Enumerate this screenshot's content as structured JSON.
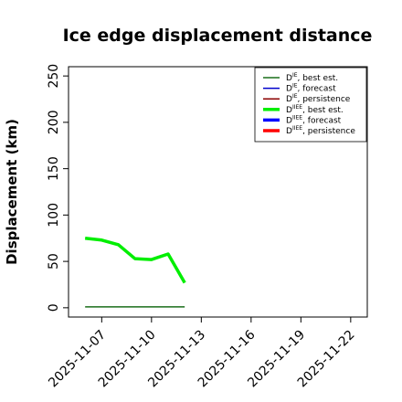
{
  "chart_data": {
    "type": "line",
    "title": "Ice edge displacement distance",
    "ylabel": "Displacement (km)",
    "xlabel": "",
    "ylim": [
      -10,
      260
    ],
    "xlim": [
      "2025-11-05",
      "2025-11-23"
    ],
    "y_ticks": [
      0,
      50,
      100,
      150,
      200,
      250
    ],
    "x_ticks": [
      {
        "label": "2025-11-07",
        "date": "2025-11-07",
        "color": "#000000"
      },
      {
        "label": "2025-11-10",
        "date": "2025-11-10",
        "color": "#000000"
      },
      {
        "label": "2025-11-13",
        "date": "2025-11-13",
        "color": "#2e7d2e"
      },
      {
        "label": "2025-11-16",
        "date": "2025-11-16",
        "color": "#000000"
      },
      {
        "label": "2025-11-19",
        "date": "2025-11-19",
        "color": "#000000"
      },
      {
        "label": "2025-11-22",
        "date": "2025-11-22",
        "color": "#000000"
      }
    ],
    "grid": false,
    "legend_position": "top-right",
    "x_dates": [
      "2025-11-06",
      "2025-11-07",
      "2025-11-08",
      "2025-11-09",
      "2025-11-10",
      "2025-11-11",
      "2025-11-12"
    ],
    "series": [
      {
        "name": "D^IE, best est.",
        "color": "#1a6e1a",
        "width": 1.5,
        "values": [
          1,
          1,
          1,
          1,
          1,
          1,
          1
        ]
      },
      {
        "name": "D^IE, forecast",
        "color": "#0000cc",
        "width": 1.5,
        "values": []
      },
      {
        "name": "D^IE, persistence",
        "color": "#8b0000",
        "width": 1.5,
        "values": []
      },
      {
        "name": "D^IIEE, best est.",
        "color": "#00ee00",
        "width": 3.5,
        "values": [
          75,
          73,
          68,
          53,
          52,
          58,
          27
        ]
      },
      {
        "name": "D^IIEE, forecast",
        "color": "#0000ff",
        "width": 3.5,
        "values": []
      },
      {
        "name": "D^IIEE, persistence",
        "color": "#ff0000",
        "width": 3.5,
        "values": []
      }
    ],
    "legend": [
      {
        "base": "D",
        "sup": "IE",
        "rest": ", best est.",
        "color": "#1a6e1a",
        "width": 1.5
      },
      {
        "base": "D",
        "sup": "IE",
        "rest": ", forecast",
        "color": "#0000cc",
        "width": 1.5
      },
      {
        "base": "D",
        "sup": "IE",
        "rest": ", persistence",
        "color": "#8b0000",
        "width": 1.5
      },
      {
        "base": "D",
        "sup": "IIEE",
        "rest": ", best est.",
        "color": "#00ee00",
        "width": 3.5
      },
      {
        "base": "D",
        "sup": "IIEE",
        "rest": ", forecast",
        "color": "#0000ff",
        "width": 3.5
      },
      {
        "base": "D",
        "sup": "IIEE",
        "rest": ", persistence",
        "color": "#ff0000",
        "width": 3.5
      }
    ]
  }
}
